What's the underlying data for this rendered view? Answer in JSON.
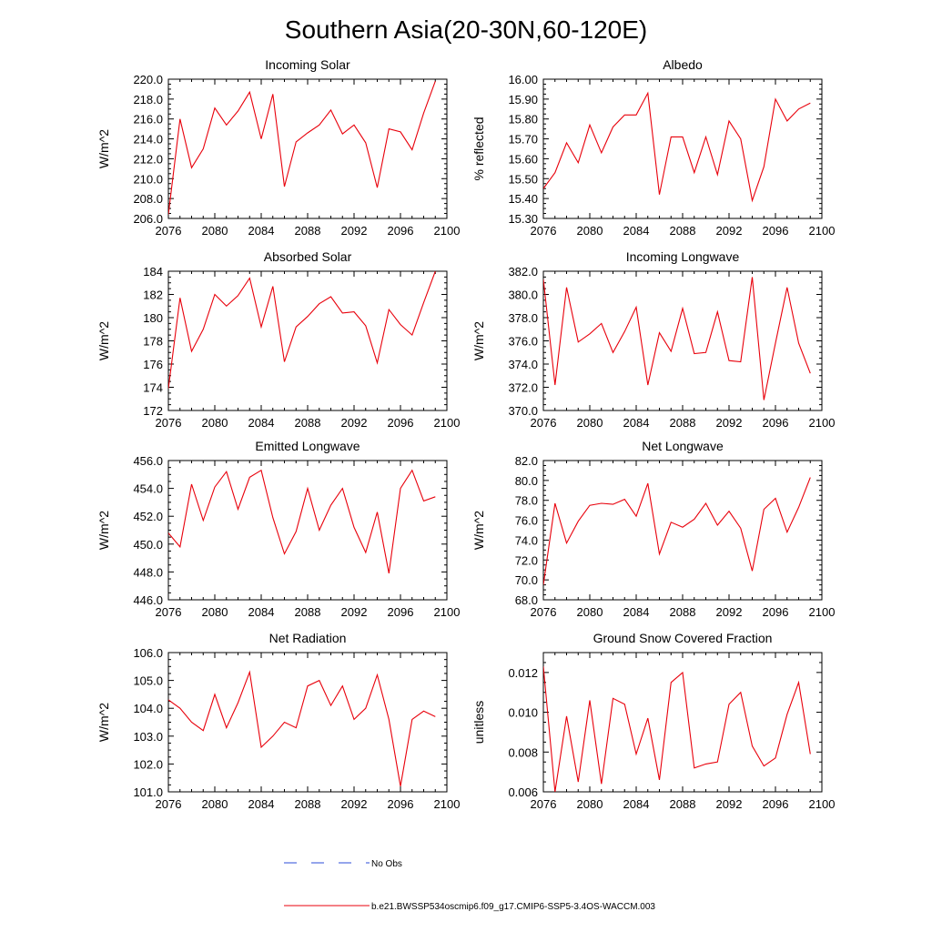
{
  "title": "Southern Asia(20-30N,60-120E)",
  "line_color": "#e8000b",
  "obs_color": "#2b4bd8",
  "legend": {
    "obs_label": "No Obs",
    "model_label": "b.e21.BWSSP534oscmip6.f09_g17.CMIP6-SSP5-3.4OS-WACCM.003"
  },
  "chart_data": [
    {
      "type": "line",
      "title": "Incoming Solar",
      "ylabel": "W/m^2",
      "xlim": [
        2076,
        2100
      ],
      "ylim": [
        206,
        220
      ],
      "yticks": [
        "206.0",
        "208.0",
        "210.0",
        "212.0",
        "214.0",
        "216.0",
        "218.0",
        "220.0"
      ],
      "xticks": [
        "2076",
        "2080",
        "2084",
        "2088",
        "2092",
        "2096",
        "2100"
      ],
      "x": [
        2076,
        2077,
        2078,
        2079,
        2080,
        2081,
        2082,
        2083,
        2084,
        2085,
        2086,
        2087,
        2088,
        2089,
        2090,
        2091,
        2092,
        2093,
        2094,
        2095,
        2096,
        2097,
        2098,
        2099
      ],
      "values": [
        206.4,
        216.0,
        211.1,
        213.0,
        217.1,
        215.4,
        216.8,
        218.7,
        214.0,
        218.5,
        209.2,
        213.7,
        214.6,
        215.4,
        216.9,
        214.5,
        215.4,
        213.6,
        209.1,
        215.0,
        214.7,
        212.9,
        216.6,
        219.8
      ]
    },
    {
      "type": "line",
      "title": "Albedo",
      "ylabel": "% reflected",
      "xlim": [
        2076,
        2100
      ],
      "ylim": [
        15.3,
        16.0
      ],
      "yticks": [
        "15.30",
        "15.40",
        "15.50",
        "15.60",
        "15.70",
        "15.80",
        "15.90",
        "16.00"
      ],
      "xticks": [
        "2076",
        "2080",
        "2084",
        "2088",
        "2092",
        "2096",
        "2100"
      ],
      "x": [
        2076,
        2077,
        2078,
        2079,
        2080,
        2081,
        2082,
        2083,
        2084,
        2085,
        2086,
        2087,
        2088,
        2089,
        2090,
        2091,
        2092,
        2093,
        2094,
        2095,
        2096,
        2097,
        2098,
        2099
      ],
      "values": [
        15.45,
        15.53,
        15.68,
        15.58,
        15.77,
        15.63,
        15.76,
        15.82,
        15.82,
        15.93,
        15.42,
        15.71,
        15.71,
        15.53,
        15.71,
        15.52,
        15.79,
        15.7,
        15.39,
        15.56,
        15.9,
        15.79,
        15.85,
        15.88
      ]
    },
    {
      "type": "line",
      "title": "Absorbed Solar",
      "ylabel": "W/m^2",
      "xlim": [
        2076,
        2100
      ],
      "ylim": [
        172,
        184
      ],
      "yticks": [
        "172",
        "174",
        "176",
        "178",
        "180",
        "182",
        "184"
      ],
      "xticks": [
        "2076",
        "2080",
        "2084",
        "2088",
        "2092",
        "2096",
        "2100"
      ],
      "x": [
        2076,
        2077,
        2078,
        2079,
        2080,
        2081,
        2082,
        2083,
        2084,
        2085,
        2086,
        2087,
        2088,
        2089,
        2090,
        2091,
        2092,
        2093,
        2094,
        2095,
        2096,
        2097,
        2098,
        2099
      ],
      "values": [
        173.9,
        181.7,
        177.1,
        179.0,
        182.0,
        181.0,
        181.9,
        183.4,
        179.2,
        182.7,
        176.2,
        179.2,
        180.1,
        181.2,
        181.8,
        180.4,
        180.5,
        179.3,
        176.1,
        180.7,
        179.4,
        178.5,
        181.3,
        184.0
      ]
    },
    {
      "type": "line",
      "title": "Incoming Longwave",
      "ylabel": "W/m^2",
      "xlim": [
        2076,
        2100
      ],
      "ylim": [
        370,
        382
      ],
      "yticks": [
        "370.0",
        "372.0",
        "374.0",
        "376.0",
        "378.0",
        "380.0",
        "382.0"
      ],
      "xticks": [
        "2076",
        "2080",
        "2084",
        "2088",
        "2092",
        "2096",
        "2100"
      ],
      "x": [
        2076,
        2077,
        2078,
        2079,
        2080,
        2081,
        2082,
        2083,
        2084,
        2085,
        2086,
        2087,
        2088,
        2089,
        2090,
        2091,
        2092,
        2093,
        2094,
        2095,
        2096,
        2097,
        2098,
        2099
      ],
      "values": [
        381.3,
        372.2,
        380.6,
        375.9,
        376.6,
        377.5,
        375.0,
        376.8,
        378.9,
        372.2,
        376.7,
        375.1,
        378.8,
        374.9,
        375.0,
        378.5,
        374.3,
        374.2,
        381.5,
        370.9,
        375.8,
        380.6,
        375.8,
        373.2
      ]
    },
    {
      "type": "line",
      "title": "Emitted Longwave",
      "ylabel": "W/m^2",
      "xlim": [
        2076,
        2100
      ],
      "ylim": [
        446,
        456
      ],
      "yticks": [
        "446.0",
        "448.0",
        "450.0",
        "452.0",
        "454.0",
        "456.0"
      ],
      "xticks": [
        "2076",
        "2080",
        "2084",
        "2088",
        "2092",
        "2096",
        "2100"
      ],
      "x": [
        2076,
        2077,
        2078,
        2079,
        2080,
        2081,
        2082,
        2083,
        2084,
        2085,
        2086,
        2087,
        2088,
        2089,
        2090,
        2091,
        2092,
        2093,
        2094,
        2095,
        2096,
        2097,
        2098,
        2099
      ],
      "values": [
        450.8,
        449.8,
        454.3,
        451.7,
        454.1,
        455.2,
        452.5,
        454.8,
        455.3,
        451.9,
        449.3,
        450.9,
        454.0,
        451.0,
        452.8,
        454.0,
        451.2,
        449.4,
        452.3,
        447.9,
        454.0,
        455.3,
        453.1,
        453.4
      ]
    },
    {
      "type": "line",
      "title": "Net Longwave",
      "ylabel": "W/m^2",
      "xlim": [
        2076,
        2100
      ],
      "ylim": [
        68,
        82
      ],
      "yticks": [
        "68.0",
        "70.0",
        "72.0",
        "74.0",
        "76.0",
        "78.0",
        "80.0",
        "82.0"
      ],
      "xticks": [
        "2076",
        "2080",
        "2084",
        "2088",
        "2092",
        "2096",
        "2100"
      ],
      "x": [
        2076,
        2077,
        2078,
        2079,
        2080,
        2081,
        2082,
        2083,
        2084,
        2085,
        2086,
        2087,
        2088,
        2089,
        2090,
        2091,
        2092,
        2093,
        2094,
        2095,
        2096,
        2097,
        2098,
        2099
      ],
      "values": [
        69.5,
        77.7,
        73.7,
        75.9,
        77.5,
        77.7,
        77.6,
        78.1,
        76.4,
        79.7,
        72.6,
        75.8,
        75.3,
        76.1,
        77.7,
        75.5,
        76.9,
        75.2,
        70.9,
        77.1,
        78.2,
        74.8,
        77.3,
        80.3
      ]
    },
    {
      "type": "line",
      "title": "Net Radiation",
      "ylabel": "W/m^2",
      "xlim": [
        2076,
        2100
      ],
      "ylim": [
        101,
        106
      ],
      "yticks": [
        "101.0",
        "102.0",
        "103.0",
        "104.0",
        "105.0",
        "106.0"
      ],
      "xticks": [
        "2076",
        "2080",
        "2084",
        "2088",
        "2092",
        "2096",
        "2100"
      ],
      "x": [
        2076,
        2077,
        2078,
        2079,
        2080,
        2081,
        2082,
        2083,
        2084,
        2085,
        2086,
        2087,
        2088,
        2089,
        2090,
        2091,
        2092,
        2093,
        2094,
        2095,
        2096,
        2097,
        2098,
        2099
      ],
      "values": [
        104.3,
        104.0,
        103.5,
        103.2,
        104.5,
        103.3,
        104.2,
        105.3,
        102.6,
        103.0,
        103.5,
        103.3,
        104.8,
        105.0,
        104.1,
        104.8,
        103.6,
        104.0,
        105.2,
        103.6,
        101.2,
        103.6,
        103.9,
        103.7
      ]
    },
    {
      "type": "line",
      "title": "Ground Snow Covered Fraction",
      "ylabel": "unitless",
      "xlim": [
        2076,
        2100
      ],
      "ylim": [
        0.006,
        0.013
      ],
      "yticks": [
        "0.006",
        "0.008",
        "0.010",
        "0.012"
      ],
      "xticks": [
        "2076",
        "2080",
        "2084",
        "2088",
        "2092",
        "2096",
        "2100"
      ],
      "x": [
        2076,
        2077,
        2078,
        2079,
        2080,
        2081,
        2082,
        2083,
        2084,
        2085,
        2086,
        2087,
        2088,
        2089,
        2090,
        2091,
        2092,
        2093,
        2094,
        2095,
        2096,
        2097,
        2098,
        2099
      ],
      "values": [
        0.0123,
        0.006,
        0.0098,
        0.0065,
        0.0106,
        0.0064,
        0.0107,
        0.0104,
        0.0079,
        0.0097,
        0.0066,
        0.0115,
        0.012,
        0.0072,
        0.0074,
        0.0075,
        0.0104,
        0.011,
        0.0083,
        0.0073,
        0.0077,
        0.0099,
        0.0115,
        0.0079
      ]
    }
  ]
}
